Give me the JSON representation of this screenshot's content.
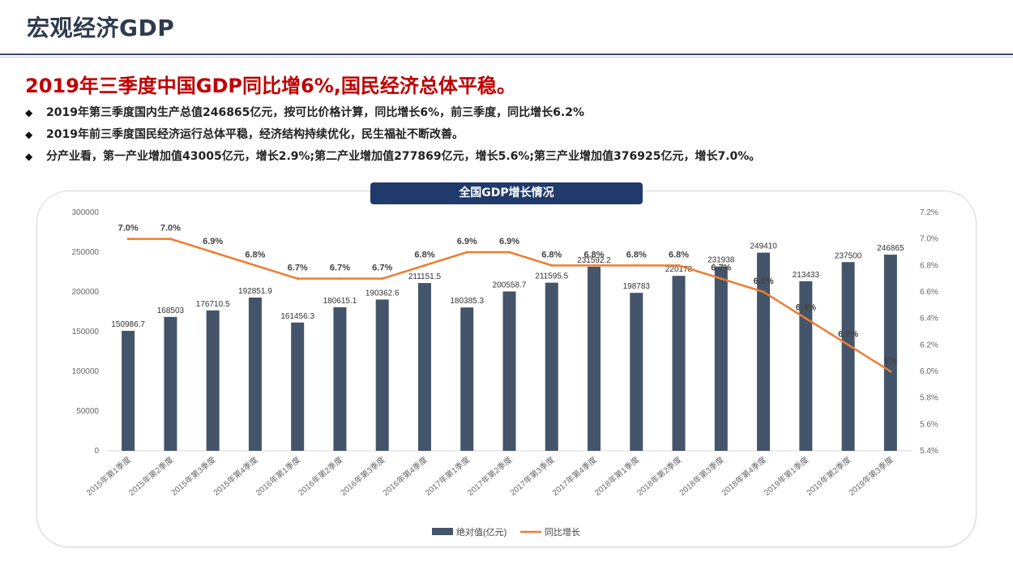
{
  "header": {
    "title": "宏观经济GDP"
  },
  "headline": "2019年三季度中国GDP同比增6%,国民经济总体平稳。",
  "bullets": [
    "2019年第三季度国内生产总值246865亿元，按可比价格计算，同比增长6%，前三季度，同比增长6.2%",
    "2019年前三季度国民经济运行总体平稳，经济结构持续优化，民生福祉不断改善。",
    "分产业看，第一产业增加值43005亿元，增长2.9%;第二产业增加值277869亿元，增长5.6%;第三产业增加值376925亿元，增长7.0%。"
  ],
  "bullet_marker": "◆",
  "chart_data": {
    "type": "bar",
    "title": "全国GDP增长情况",
    "categories": [
      "2015年第1季度",
      "2015年第2季度",
      "2015年第3季度",
      "2015年第4季度",
      "2016年第1季度",
      "2016年第2季度",
      "2016年第3季度",
      "2016年第4季度",
      "2017年第1季度",
      "2017年第2季度",
      "2017年第3季度",
      "2017年第4季度",
      "2018年第1季度",
      "2018年第2季度",
      "2018年第3季度",
      "2018年第4季度",
      "2019年第1季度",
      "2019年第2季度",
      "2019年第3季度"
    ],
    "series": [
      {
        "name": "绝对值(亿元)",
        "type": "bar",
        "axis": "left",
        "color": "#44546a",
        "values": [
          150986.7,
          168503,
          176710.5,
          192851.9,
          161456.3,
          180615.1,
          190362.6,
          211151.5,
          180385.3,
          200558.7,
          211595.5,
          231592.2,
          198783,
          220178,
          231938,
          249410,
          213433,
          237500,
          246865
        ],
        "labels": [
          "150986.7",
          "168503",
          "176710.5",
          "192851.9",
          "161456.3",
          "180615.1",
          "190362.6",
          "211151.5",
          "180385.3",
          "200558.7",
          "211595.5",
          "231592.2",
          "198783",
          "220178",
          "231938",
          "249410",
          "213433",
          "237500",
          "246865"
        ]
      },
      {
        "name": "同比增长",
        "type": "line",
        "axis": "right",
        "color": "#ed7d31",
        "values": [
          7.0,
          7.0,
          6.9,
          6.8,
          6.7,
          6.7,
          6.7,
          6.8,
          6.9,
          6.9,
          6.8,
          6.8,
          6.8,
          6.8,
          6.7,
          6.6,
          6.4,
          6.2,
          6.0
        ],
        "labels": [
          "7.0%",
          "7.0%",
          "6.9%",
          "6.8%",
          "6.7%",
          "6.7%",
          "6.7%",
          "6.8%",
          "6.9%",
          "6.9%",
          "6.8%",
          "6.8%",
          "6.8%",
          "6.8%",
          "6.7%",
          "6.6%",
          "6.4%",
          "6.2%",
          "6%"
        ]
      }
    ],
    "y_left": {
      "min": 0,
      "max": 300000,
      "step": 50000,
      "ticks": [
        "0",
        "50000",
        "100000",
        "150000",
        "200000",
        "250000",
        "300000"
      ]
    },
    "y_right": {
      "min": 5.4,
      "max": 7.2,
      "step": 0.2,
      "ticks": [
        "5.4%",
        "5.6%",
        "5.8%",
        "6.0%",
        "6.2%",
        "6.4%",
        "6.6%",
        "6.8%",
        "7.0%",
        "7.2%"
      ]
    },
    "grid": false,
    "legend_position": "bottom"
  }
}
